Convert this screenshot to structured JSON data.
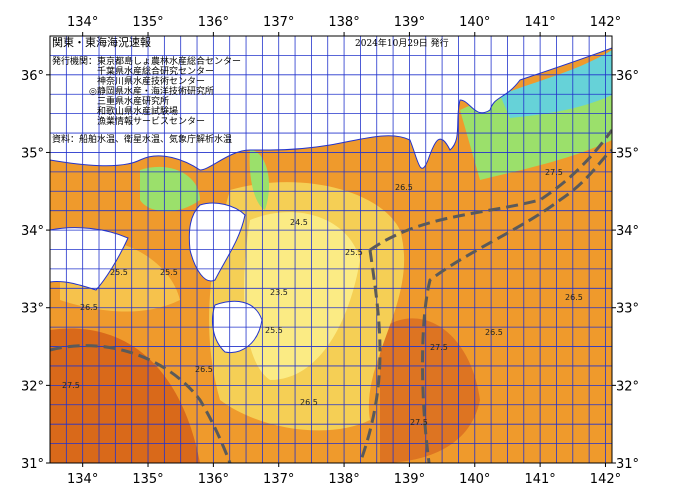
{
  "header": {
    "title": "関東・東海海況速報",
    "date": "2024年10月29日 発行",
    "agencies_label": "発行機関：",
    "agencies": [
      "東京都島しょ農林水産総合センター",
      "千葉県水産総合研究センター",
      "神奈川県水産技術センター",
      "◎静岡県水産・海洋技術研究所",
      "三重県水産研究所",
      "和歌山県水産試験場",
      "漁業情報サービスセンター"
    ],
    "source": "資料：船舶水温、衛星水温、気象庁解析水温"
  },
  "map": {
    "lon_range": [
      133.5,
      142.1
    ],
    "lat_range": [
      31,
      36.5
    ],
    "lon_ticks": [
      {
        "value": 134,
        "label": "134°"
      },
      {
        "value": 135,
        "label": "135°"
      },
      {
        "value": 136,
        "label": "136°"
      },
      {
        "value": 137,
        "label": "137°"
      },
      {
        "value": 138,
        "label": "138°"
      },
      {
        "value": 139,
        "label": "139°"
      },
      {
        "value": 140,
        "label": "140°"
      },
      {
        "value": 141,
        "label": "141°"
      },
      {
        "value": 142,
        "label": "142°"
      }
    ],
    "lat_ticks": [
      {
        "value": 31,
        "label": "31°"
      },
      {
        "value": 32,
        "label": "32°"
      },
      {
        "value": 33,
        "label": "33°"
      },
      {
        "value": 34,
        "label": "34°"
      },
      {
        "value": 35,
        "label": "35°"
      },
      {
        "value": 36,
        "label": "36°"
      }
    ],
    "contour_labels": [
      "25.5",
      "26.5",
      "27.5",
      "24.5",
      "23.5",
      "25.5",
      "26.5",
      "26.5",
      "27.5",
      "25.5",
      "26.5",
      "27.5",
      "26.5",
      "25.5",
      "26.5",
      "27.5"
    ]
  }
}
